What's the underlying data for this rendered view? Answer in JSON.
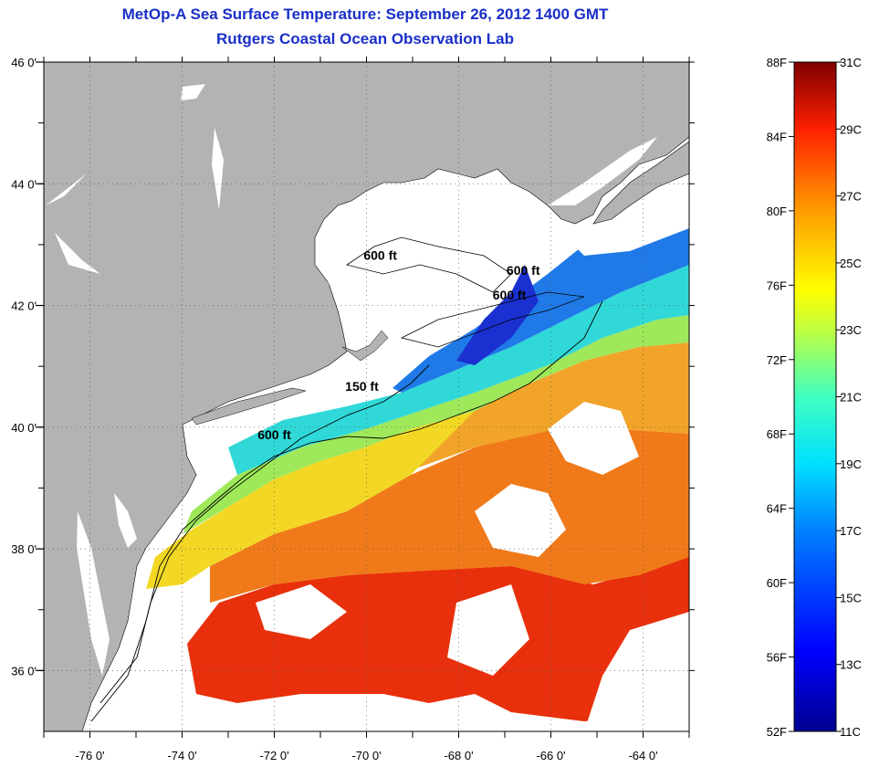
{
  "header": {
    "title": "MetOp-A Sea Surface Temperature:  September 26, 2012 1400 GMT",
    "subtitle": "Rutgers Coastal Ocean Observation Lab"
  },
  "map": {
    "lat_labels": [
      "46 0'",
      "44 0'",
      "42 0'",
      "40 0'",
      "38 0'",
      "36 0'"
    ],
    "lon_labels": [
      "-76 0'",
      "-74 0'",
      "-72 0'",
      "-70 0'",
      "-68 0'",
      "-66 0'",
      "-64 0'"
    ],
    "lat_range": [
      35,
      46
    ],
    "lon_range": [
      -77,
      -63
    ],
    "land_color": "#b3b3b3",
    "grid": "dotted",
    "isobath_labels": [
      {
        "text": "600 ft",
        "lon": -69.7,
        "lat": 42.75
      },
      {
        "text": "600 ft",
        "lon": -66.6,
        "lat": 42.5
      },
      {
        "text": "600 ft",
        "lon": -66.9,
        "lat": 42.1
      },
      {
        "text": "150 ft",
        "lon": -70.1,
        "lat": 40.6
      },
      {
        "text": "600 ft",
        "lon": -72.0,
        "lat": 39.8
      }
    ]
  },
  "colorbar": {
    "f_labels": [
      "88F",
      "84F",
      "80F",
      "76F",
      "72F",
      "68F",
      "64F",
      "60F",
      "56F",
      "52F"
    ],
    "c_labels": [
      "31C",
      "29C",
      "27C",
      "25C",
      "23C",
      "21C",
      "19C",
      "17C",
      "15C",
      "13C",
      "11C"
    ],
    "range_c": [
      11,
      31
    ]
  }
}
